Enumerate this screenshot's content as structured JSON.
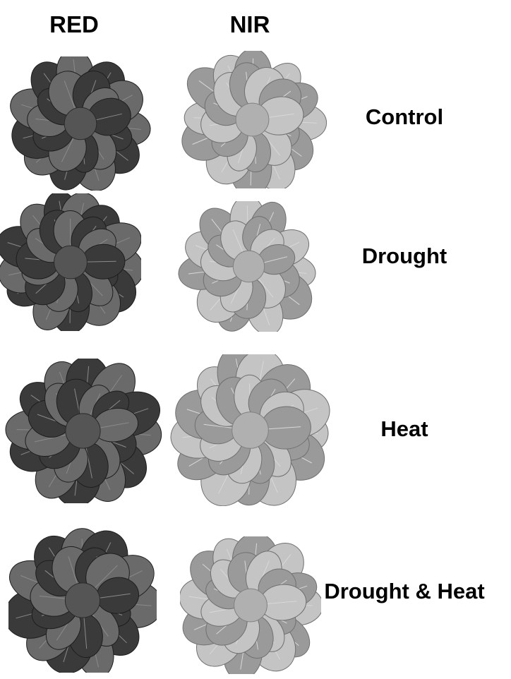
{
  "columns": {
    "red": "RED",
    "nir": "NIR"
  },
  "rows": [
    {
      "label": "Control"
    },
    {
      "label": "Drought"
    },
    {
      "label": "Heat"
    },
    {
      "label": "Drought & Heat"
    }
  ],
  "colors": {
    "red_leaf": "#3a3a3a",
    "red_leaf_light": "#6a6a6a",
    "nir_leaf": "#9a9a9a",
    "nir_leaf_light": "#c4c4c4"
  }
}
